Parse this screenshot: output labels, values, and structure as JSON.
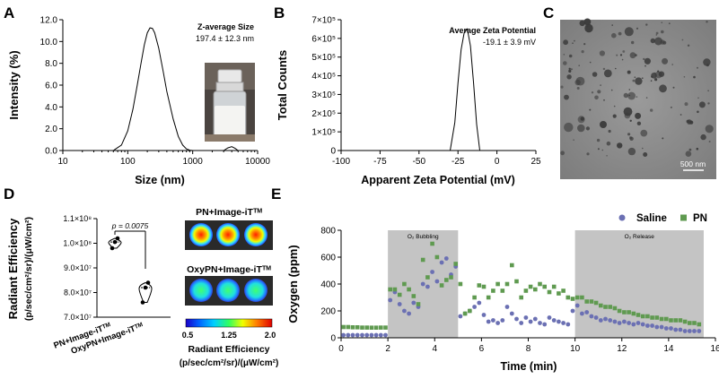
{
  "panels": {
    "A": "A",
    "B": "B",
    "C": "C",
    "D": "D",
    "E": "E"
  },
  "chart_data": [
    {
      "id": "A",
      "type": "line",
      "ylabel": "Intensity (%)",
      "xlabel": "Size (nm)",
      "xscale": "log",
      "xlim": [
        10,
        10000
      ],
      "ylim": [
        0,
        12
      ],
      "xticks": [
        "10",
        "100",
        "1000",
        "10000"
      ],
      "yticks": [
        "0.0",
        "2.0",
        "4.0",
        "6.0",
        "8.0",
        "10.0",
        "12.0"
      ],
      "annotation_title": "Z-average Size",
      "annotation_value": "197.4 ± 12.3 nm",
      "x": [
        60,
        80,
        100,
        120,
        140,
        160,
        180,
        200,
        220,
        240,
        260,
        300,
        350,
        400,
        500,
        600,
        700,
        800,
        900,
        1000,
        3000,
        3500,
        4000,
        4500,
        5000
      ],
      "y": [
        0,
        0.5,
        1.8,
        3.8,
        6.0,
        8.0,
        9.7,
        10.8,
        11.25,
        11.2,
        10.8,
        9.4,
        7.3,
        5.4,
        2.9,
        1.3,
        0.5,
        0.15,
        0.03,
        0,
        0,
        0.25,
        0.35,
        0.2,
        0
      ]
    },
    {
      "id": "B",
      "type": "line",
      "ylabel": "Total Counts",
      "xlabel": "Apparent Zeta Potential (mV)",
      "xlim": [
        -100,
        25
      ],
      "ylim": [
        0,
        700000
      ],
      "xticks": [
        "-100",
        "-75",
        "-50",
        "-25",
        "0",
        "25"
      ],
      "yticks": [
        "0",
        "1×10⁵",
        "2×10⁵",
        "3×10⁵",
        "4×10⁵",
        "5×10⁵",
        "6×10⁵",
        "7×10⁵"
      ],
      "annotation_title": "Average Zeta Potential",
      "annotation_value": "-19.1 ± 3.9 mV",
      "x": [
        -30,
        -27,
        -25,
        -23,
        -21,
        -19,
        -17,
        -15,
        -13,
        -11
      ],
      "y": [
        0,
        150000,
        360000,
        540000,
        630000,
        650000,
        560000,
        360000,
        140000,
        0
      ]
    },
    {
      "id": "D",
      "type": "violin",
      "ylabel": "Radiant Efficiency",
      "ylabel_units": "(p/sec/cm²/sr)/(μW/cm²)",
      "ylim": [
        70000000,
        110000000
      ],
      "yticks": [
        "7.0×10⁷",
        "8.0×10⁷",
        "9.0×10⁷",
        "1.0×10⁸",
        "1.1×10⁸"
      ],
      "categories": [
        "PN+Image-iTᵀᴹ",
        "OxyPN+Image-iTᵀᴹ"
      ],
      "points": [
        [
          98000000,
          100500000,
          102000000
        ],
        [
          76000000,
          82000000,
          84000000
        ]
      ],
      "pvalue": "p = 0.0075",
      "image_labels": [
        "PN+Image-iTᵀᴹ",
        "OxyPN+Image-iTᵀᴹ"
      ],
      "colorbar_ticks": [
        "0.5",
        "1.25",
        "2.0"
      ],
      "colorbar_label": "Radiant Efficiency",
      "colorbar_units": "(p/sec/cm²/sr)/(μW/cm²)"
    },
    {
      "id": "E",
      "type": "scatter",
      "ylabel": "Oxygen (ppm)",
      "xlabel": "Time (min)",
      "xlim": [
        0,
        16
      ],
      "ylim": [
        0,
        800
      ],
      "xticks": [
        "0",
        "2",
        "4",
        "6",
        "8",
        "10",
        "12",
        "14",
        "16"
      ],
      "yticks": [
        "0",
        "200",
        "400",
        "600",
        "800"
      ],
      "regions": [
        {
          "label": "O₂ Bubbling",
          "x0": 2,
          "x1": 5
        },
        {
          "label": "O₂ Release",
          "x0": 10,
          "x1": 15.5
        }
      ],
      "series": [
        {
          "name": "Saline",
          "color": "#6b70b3",
          "x": [
            0.1,
            0.3,
            0.5,
            0.7,
            0.9,
            1.1,
            1.3,
            1.5,
            1.7,
            1.9,
            2.1,
            2.3,
            2.5,
            2.7,
            2.9,
            3.1,
            3.3,
            3.5,
            3.7,
            3.9,
            4.1,
            4.3,
            4.5,
            4.7,
            4.9,
            5.1,
            5.3,
            5.5,
            5.7,
            5.9,
            6.1,
            6.3,
            6.5,
            6.7,
            6.9,
            7.1,
            7.3,
            7.5,
            7.7,
            7.9,
            8.1,
            8.3,
            8.5,
            8.7,
            8.9,
            9.1,
            9.3,
            9.5,
            9.7,
            9.9,
            10.1,
            10.3,
            10.5,
            10.7,
            10.9,
            11.1,
            11.3,
            11.5,
            11.7,
            11.9,
            12.1,
            12.3,
            12.5,
            12.7,
            12.9,
            13.1,
            13.3,
            13.5,
            13.7,
            13.9,
            14.1,
            14.3,
            14.5,
            14.7,
            14.9,
            15.1,
            15.3
          ],
          "y": [
            20,
            20,
            20,
            20,
            20,
            20,
            20,
            20,
            20,
            20,
            280,
            340,
            250,
            200,
            180,
            260,
            230,
            400,
            380,
            490,
            420,
            560,
            590,
            470,
            530,
            160,
            180,
            200,
            230,
            260,
            170,
            120,
            130,
            110,
            130,
            230,
            180,
            140,
            110,
            150,
            120,
            140,
            110,
            100,
            150,
            130,
            120,
            110,
            100,
            200,
            240,
            180,
            190,
            160,
            150,
            130,
            140,
            130,
            120,
            110,
            120,
            110,
            100,
            110,
            100,
            90,
            90,
            80,
            80,
            70,
            70,
            60,
            60,
            50,
            50,
            50,
            50
          ]
        },
        {
          "name": "PN",
          "color": "#5f9a50",
          "x": [
            0.1,
            0.3,
            0.5,
            0.7,
            0.9,
            1.1,
            1.3,
            1.5,
            1.7,
            1.9,
            2.1,
            2.3,
            2.5,
            2.7,
            2.9,
            3.1,
            3.3,
            3.5,
            3.7,
            3.9,
            4.1,
            4.3,
            4.5,
            4.7,
            4.9,
            5.1,
            5.3,
            5.5,
            5.7,
            5.9,
            6.1,
            6.3,
            6.5,
            6.7,
            6.9,
            7.1,
            7.3,
            7.5,
            7.7,
            7.9,
            8.1,
            8.3,
            8.5,
            8.7,
            8.9,
            9.1,
            9.3,
            9.5,
            9.7,
            9.9,
            10.1,
            10.3,
            10.5,
            10.7,
            10.9,
            11.1,
            11.3,
            11.5,
            11.7,
            11.9,
            12.1,
            12.3,
            12.5,
            12.7,
            12.9,
            13.1,
            13.3,
            13.5,
            13.7,
            13.9,
            14.1,
            14.3,
            14.5,
            14.7,
            14.9,
            15.1,
            15.3
          ],
          "y": [
            80,
            80,
            78,
            78,
            76,
            76,
            75,
            75,
            76,
            76,
            360,
            360,
            320,
            400,
            360,
            310,
            250,
            580,
            450,
            700,
            600,
            390,
            430,
            450,
            550,
            400,
            180,
            200,
            300,
            390,
            380,
            300,
            350,
            400,
            350,
            400,
            540,
            420,
            300,
            350,
            380,
            360,
            400,
            380,
            340,
            380,
            330,
            350,
            300,
            290,
            300,
            300,
            270,
            270,
            260,
            240,
            230,
            230,
            220,
            200,
            190,
            190,
            180,
            170,
            160,
            160,
            150,
            150,
            140,
            140,
            130,
            130,
            130,
            120,
            110,
            110,
            100
          ]
        }
      ]
    }
  ],
  "images": {
    "tem_scale_label": "500 nm"
  }
}
